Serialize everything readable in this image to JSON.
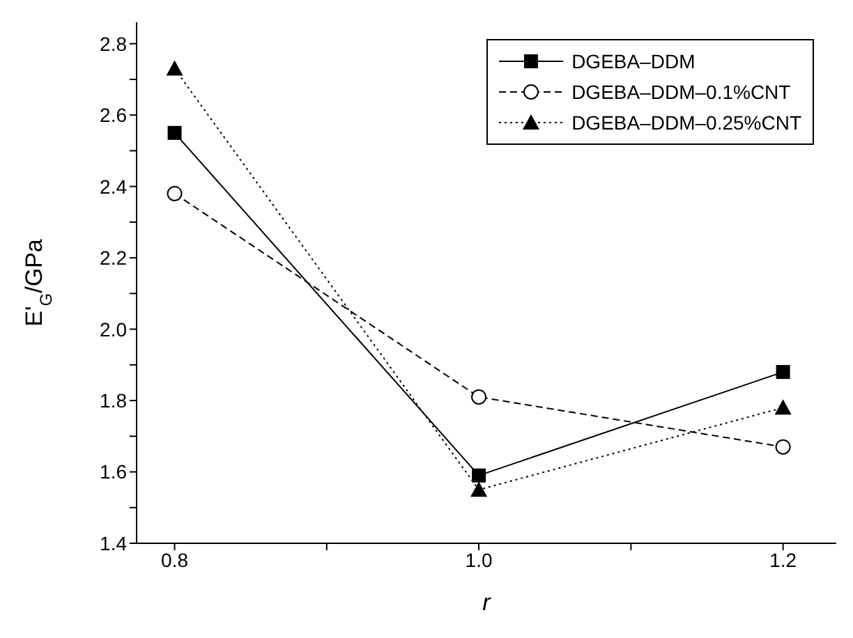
{
  "chart_data": {
    "type": "line",
    "xlabel": "r",
    "ylabel": "E'$_{G}$/GPa",
    "x": [
      0.8,
      1.0,
      1.2
    ],
    "series": [
      {
        "name": "DGEBA–DDM",
        "color": "#000000",
        "values": [
          2.55,
          1.59,
          1.88
        ],
        "marker": "square",
        "line_style": "solid"
      },
      {
        "name": "DGEBA–DDM–0.1%CNT",
        "color": "#000000",
        "values": [
          2.38,
          1.81,
          1.67
        ],
        "marker": "circle",
        "line_style": "dashed"
      },
      {
        "name": "DGEBA–DDM–0.25%CNT",
        "color": "#000000",
        "values": [
          2.73,
          1.55,
          1.78
        ],
        "marker": "triangle",
        "line_style": "dotted"
      }
    ],
    "xlim": [
      0.775,
      1.235
    ],
    "xticks": [
      {
        "value": 0.8,
        "label": "0.8"
      },
      {
        "value": 0.9,
        "label": null
      },
      {
        "value": 1.0,
        "label": "1.0"
      },
      {
        "value": 1.1,
        "label": null
      },
      {
        "value": 1.2,
        "label": "1.2"
      }
    ],
    "ylim": [
      1.4,
      2.86
    ],
    "yticks": [
      {
        "value": 1.4,
        "label": "1.4"
      },
      {
        "value": 1.5,
        "label": null
      },
      {
        "value": 1.6,
        "label": "1.6"
      },
      {
        "value": 1.7,
        "label": null
      },
      {
        "value": 1.8,
        "label": "1.8"
      },
      {
        "value": 1.9,
        "label": null
      },
      {
        "value": 2.0,
        "label": "2.0"
      },
      {
        "value": 2.1,
        "label": null
      },
      {
        "value": 2.2,
        "label": "2.2"
      },
      {
        "value": 2.3,
        "label": null
      },
      {
        "value": 2.4,
        "label": "2.4"
      },
      {
        "value": 2.5,
        "label": null
      },
      {
        "value": 2.6,
        "label": "2.6"
      },
      {
        "value": 2.7,
        "label": null
      },
      {
        "value": 2.8,
        "label": "2.8"
      }
    ],
    "legend": "top right",
    "grid": false
  }
}
